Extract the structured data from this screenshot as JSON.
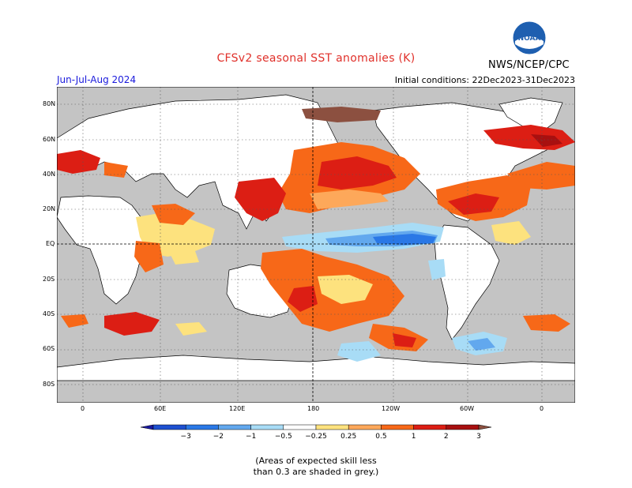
{
  "title": "CFSv2 seasonal SST anomalies (K)",
  "season": "Jun-Jul-Aug 2024",
  "initial_conditions": "Initial conditions: 22Dec2023-31Dec2023",
  "agency": "NWS/NCEP/CPC",
  "logo_text": "NOAA",
  "lat_labels": [
    "80N",
    "60N",
    "40N",
    "20N",
    "EQ",
    "20S",
    "40S",
    "60S",
    "80S"
  ],
  "lon_labels": [
    "0",
    "60E",
    "120E",
    "180",
    "120W",
    "60W",
    "0"
  ],
  "colorbar": {
    "labels": [
      "−3",
      "−2",
      "−1",
      "−0.5",
      "−0.25",
      "0.25",
      "0.5",
      "1",
      "2",
      "3"
    ],
    "colors": [
      "#1a1aa0",
      "#1e50d0",
      "#2a78e6",
      "#62a8ee",
      "#a8dcf6",
      "#ffffff",
      "#fde27e",
      "#fda85a",
      "#f76818",
      "#dc1e14",
      "#a81010",
      "#8c5040"
    ]
  },
  "note_line1": "(Areas of expected skill less",
  "note_line2": "than 0.3 are shaded in grey.)",
  "colors": {
    "land": "#ffffff",
    "skill_grey": "#c4c4c4",
    "title": "#e0302a",
    "season": "#1a1adc"
  }
}
